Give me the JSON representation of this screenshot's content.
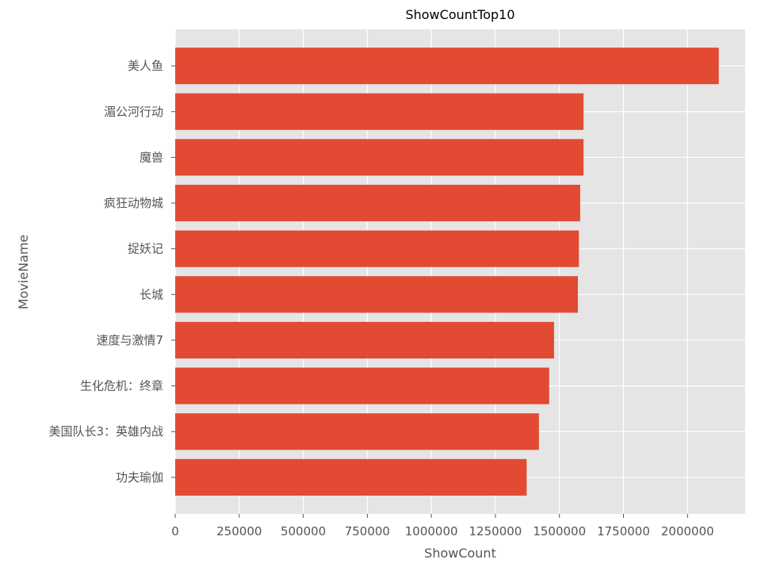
{
  "chart_data": {
    "type": "bar",
    "orientation": "horizontal",
    "title": "ShowCountTop10",
    "xlabel": "ShowCount",
    "ylabel": "MovieName",
    "categories": [
      "美人鱼",
      "湄公河行动",
      "魔兽",
      "疯狂动物城",
      "捉妖记",
      "长城",
      "速度与激情7",
      "生化危机：终章",
      "美国队长3：英雄内战",
      "功夫瑜伽"
    ],
    "values": [
      2122000,
      1594000,
      1594000,
      1581000,
      1576000,
      1572000,
      1479000,
      1460000,
      1420000,
      1372000
    ],
    "xlim": [
      0,
      2225000
    ],
    "xticks": [
      0,
      250000,
      500000,
      750000,
      1000000,
      1250000,
      1500000,
      1750000,
      2000000
    ],
    "grid": true,
    "colors": {
      "bar": "#e24a33",
      "background": "#e5e5e5",
      "grid": "#ffffff"
    }
  }
}
